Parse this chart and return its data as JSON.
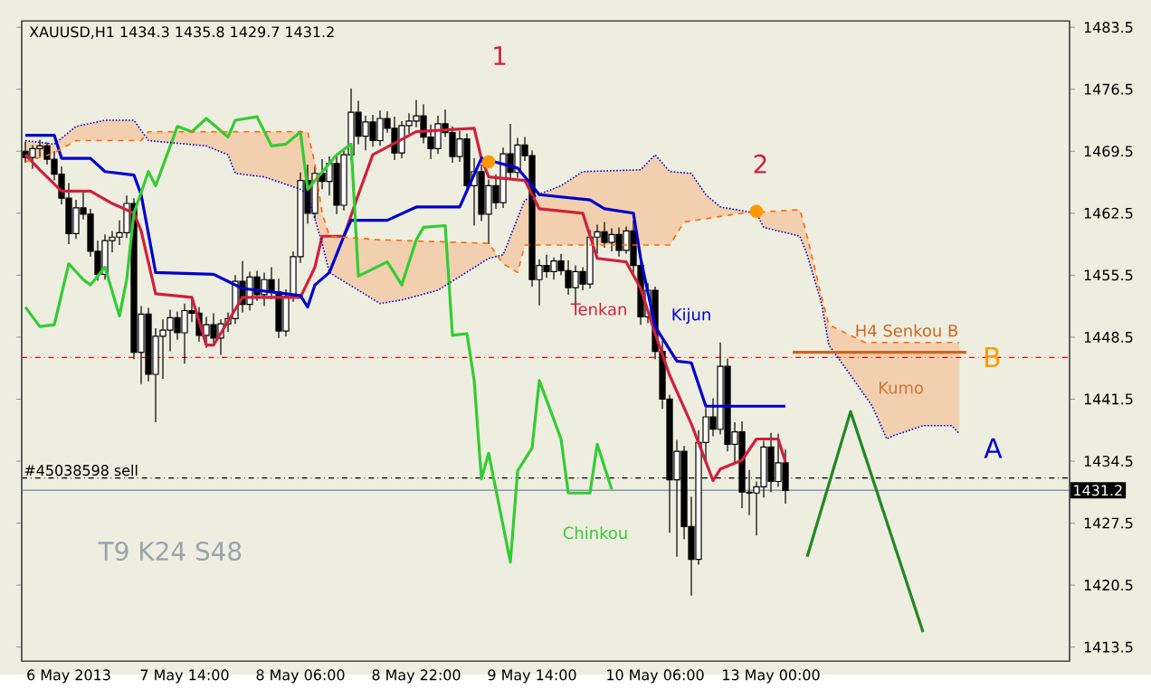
{
  "chart_data": {
    "type": "candlestick",
    "title": "XAUUSD,H1 1434.3 1435.8 1429.7 1431.2",
    "categories": [
      null,
      null,
      null,
      null,
      null,
      null,
      "6 May 2013",
      null,
      null,
      null,
      null,
      null,
      null,
      null,
      null,
      null,
      null,
      null,
      null,
      null,
      null,
      null,
      "7 May 14:00",
      null,
      null,
      null,
      null,
      null,
      null,
      null,
      null,
      null,
      null,
      null,
      null,
      null,
      null,
      null,
      "8 May 06:00",
      null,
      null,
      null,
      null,
      null,
      null,
      null,
      null,
      null,
      null,
      null,
      null,
      null,
      null,
      null,
      "8 May 22:00",
      null,
      null,
      null,
      null,
      null,
      null,
      null,
      null,
      null,
      null,
      null,
      null,
      null,
      null,
      null,
      "9 May 14:00",
      null,
      null,
      null,
      null,
      null,
      null,
      null,
      null,
      null,
      null,
      null,
      null,
      null,
      null,
      null,
      null,
      "10 May 06:00",
      null,
      null,
      null,
      null,
      null,
      null,
      null,
      null,
      null,
      null,
      null,
      null,
      null,
      null,
      null,
      "13 May 00:00",
      null,
      null,
      null,
      null,
      null,
      null,
      null,
      null,
      null,
      null,
      null,
      null,
      null,
      null,
      null,
      null,
      null,
      null,
      null,
      null,
      null,
      null,
      null,
      null,
      null,
      null,
      null,
      null,
      null,
      null,
      null,
      null,
      null,
      null,
      null,
      null,
      null,
      null,
      null,
      null,
      null
    ],
    "ohlc": [
      [
        1469.5,
        1470.6,
        1468.2,
        1468.8
      ],
      [
        1468.8,
        1470.2,
        1467.5,
        1469.8
      ],
      [
        1469.8,
        1470.8,
        1468.9,
        1470.1
      ],
      [
        1470.1,
        1470.5,
        1468.0,
        1468.6
      ],
      [
        1468.6,
        1469.5,
        1466.2,
        1466.9
      ],
      [
        1466.9,
        1467.8,
        1463.5,
        1464.2
      ],
      [
        1464.2,
        1465.9,
        1459.0,
        1460.2
      ],
      [
        1460.2,
        1464.0,
        1459.6,
        1463.1
      ],
      [
        1463.1,
        1465.1,
        1461.8,
        1462.4
      ],
      [
        1462.4,
        1463.0,
        1457.6,
        1458.2
      ],
      [
        1458.2,
        1459.4,
        1454.9,
        1455.6
      ],
      [
        1455.6,
        1460.1,
        1455.0,
        1459.4
      ],
      [
        1459.4,
        1460.5,
        1458.1,
        1459.8
      ],
      [
        1459.8,
        1461.7,
        1458.9,
        1460.3
      ],
      [
        1460.3,
        1464.5,
        1459.7,
        1463.6
      ],
      [
        1463.6,
        1464.2,
        1446.0,
        1446.8
      ],
      [
        1446.8,
        1452.0,
        1443.2,
        1451.1
      ],
      [
        1451.1,
        1451.8,
        1443.5,
        1444.3
      ],
      [
        1444.3,
        1449.5,
        1438.9,
        1448.6
      ],
      [
        1448.6,
        1450.5,
        1443.8,
        1449.3
      ],
      [
        1449.3,
        1451.6,
        1446.9,
        1450.7
      ],
      [
        1450.7,
        1451.4,
        1448.2,
        1449.0
      ],
      [
        1449.0,
        1452.3,
        1445.5,
        1451.5
      ],
      [
        1451.5,
        1452.9,
        1450.2,
        1451.2
      ],
      [
        1451.2,
        1451.9,
        1448.0,
        1448.7
      ],
      [
        1448.7,
        1450.8,
        1447.3,
        1449.9
      ],
      [
        1449.9,
        1451.2,
        1447.8,
        1448.4
      ],
      [
        1448.4,
        1450.5,
        1446.5,
        1450.0
      ],
      [
        1450.0,
        1451.3,
        1449.1,
        1450.6
      ],
      [
        1450.6,
        1455.5,
        1450.0,
        1454.8
      ],
      [
        1454.8,
        1457.1,
        1451.3,
        1452.2
      ],
      [
        1452.2,
        1455.9,
        1451.5,
        1455.3
      ],
      [
        1455.3,
        1456.0,
        1452.6,
        1453.3
      ],
      [
        1453.3,
        1455.8,
        1452.0,
        1455.0
      ],
      [
        1455.0,
        1456.4,
        1452.8,
        1453.6
      ],
      [
        1453.6,
        1455.1,
        1448.4,
        1449.2
      ],
      [
        1449.2,
        1453.9,
        1448.6,
        1453.1
      ],
      [
        1453.1,
        1458.2,
        1452.5,
        1457.6
      ],
      [
        1457.6,
        1467.1,
        1456.9,
        1466.2
      ],
      [
        1466.2,
        1468.0,
        1461.3,
        1462.5
      ],
      [
        1462.5,
        1467.8,
        1461.9,
        1467.0
      ],
      [
        1467.0,
        1468.6,
        1465.2,
        1466.1
      ],
      [
        1466.1,
        1468.9,
        1464.5,
        1468.1
      ],
      [
        1468.1,
        1469.0,
        1462.4,
        1463.4
      ],
      [
        1463.4,
        1469.8,
        1462.8,
        1469.1
      ],
      [
        1469.1,
        1476.6,
        1468.5,
        1473.9
      ],
      [
        1473.9,
        1475.2,
        1470.3,
        1471.2
      ],
      [
        1471.2,
        1473.5,
        1469.6,
        1472.8
      ],
      [
        1472.8,
        1473.6,
        1470.0,
        1470.7
      ],
      [
        1470.7,
        1474.1,
        1470.1,
        1473.2
      ],
      [
        1473.2,
        1474.0,
        1471.6,
        1472.1
      ],
      [
        1472.1,
        1473.4,
        1468.5,
        1469.3
      ],
      [
        1469.3,
        1472.9,
        1468.7,
        1472.4
      ],
      [
        1472.4,
        1473.8,
        1471.5,
        1472.9
      ],
      [
        1472.9,
        1475.3,
        1472.2,
        1473.5
      ],
      [
        1473.5,
        1474.8,
        1470.4,
        1471.1
      ],
      [
        1471.1,
        1472.5,
        1468.6,
        1469.8
      ],
      [
        1469.8,
        1473.5,
        1469.2,
        1472.6
      ],
      [
        1472.6,
        1474.2,
        1471.1,
        1471.6
      ],
      [
        1471.6,
        1472.3,
        1468.2,
        1468.9
      ],
      [
        1468.9,
        1471.8,
        1468.3,
        1470.9
      ],
      [
        1470.9,
        1471.5,
        1464.8,
        1465.6
      ],
      [
        1465.6,
        1468.7,
        1461.1,
        1467.2
      ],
      [
        1467.2,
        1468.0,
        1461.6,
        1462.4
      ],
      [
        1462.4,
        1466.3,
        1459.0,
        1465.6
      ],
      [
        1465.6,
        1466.9,
        1463.0,
        1463.7
      ],
      [
        1463.7,
        1469.9,
        1463.1,
        1469.2
      ],
      [
        1469.2,
        1472.6,
        1466.3,
        1467.1
      ],
      [
        1467.1,
        1471.0,
        1466.5,
        1470.2
      ],
      [
        1470.2,
        1471.1,
        1468.4,
        1469.0
      ],
      [
        1469.0,
        1469.6,
        1454.2,
        1455.0
      ],
      [
        1455.0,
        1457.3,
        1452.1,
        1456.6
      ],
      [
        1456.6,
        1457.8,
        1455.2,
        1455.9
      ],
      [
        1455.9,
        1457.5,
        1455.0,
        1457.1
      ],
      [
        1457.1,
        1457.9,
        1455.5,
        1456.0
      ],
      [
        1456.0,
        1457.2,
        1453.3,
        1454.1
      ],
      [
        1454.1,
        1456.6,
        1451.9,
        1455.9
      ],
      [
        1455.9,
        1456.4,
        1453.8,
        1454.5
      ],
      [
        1454.5,
        1460.6,
        1454.0,
        1459.8
      ],
      [
        1459.8,
        1461.2,
        1457.9,
        1460.4
      ],
      [
        1460.4,
        1461.5,
        1458.6,
        1459.2
      ],
      [
        1459.2,
        1460.8,
        1458.2,
        1460.1
      ],
      [
        1460.1,
        1460.9,
        1457.6,
        1458.3
      ],
      [
        1458.3,
        1461.0,
        1457.9,
        1460.5
      ],
      [
        1460.5,
        1461.7,
        1455.8,
        1456.6
      ],
      [
        1456.6,
        1457.3,
        1449.9,
        1450.8
      ],
      [
        1450.8,
        1454.6,
        1450.1,
        1453.8
      ],
      [
        1453.8,
        1454.2,
        1446.0,
        1446.9
      ],
      [
        1446.9,
        1448.1,
        1440.4,
        1441.5
      ],
      [
        1441.5,
        1442.0,
        1426.4,
        1432.4
      ],
      [
        1432.4,
        1436.9,
        1423.7,
        1435.6
      ],
      [
        1435.6,
        1436.2,
        1425.7,
        1427.1
      ],
      [
        1427.1,
        1430.5,
        1419.3,
        1423.4
      ],
      [
        1423.4,
        1438.0,
        1422.8,
        1436.6
      ],
      [
        1436.6,
        1440.5,
        1434.5,
        1439.5
      ],
      [
        1439.5,
        1441.6,
        1437.3,
        1438.1
      ],
      [
        1438.1,
        1447.9,
        1437.5,
        1445.2
      ],
      [
        1445.2,
        1446.1,
        1435.6,
        1436.4
      ],
      [
        1436.4,
        1438.9,
        1434.2,
        1437.8
      ],
      [
        1437.8,
        1439.0,
        1429.2,
        1431.0
      ],
      [
        1431.0,
        1433.5,
        1428.4,
        1430.9
      ],
      [
        1430.9,
        1432.2,
        1426.1,
        1431.6
      ],
      [
        1431.6,
        1436.8,
        1430.4,
        1436.1
      ],
      [
        1436.1,
        1437.7,
        1431.0,
        1432.2
      ],
      [
        1432.2,
        1437.6,
        1431.6,
        1434.3
      ],
      [
        1434.3,
        1435.8,
        1429.7,
        1431.2
      ],
      null,
      null,
      null,
      null,
      null,
      null,
      null,
      null,
      null,
      null,
      null,
      null,
      null,
      null,
      null,
      null,
      null,
      null,
      null,
      null,
      null,
      null,
      null,
      null,
      null,
      null,
      null,
      null,
      null,
      null,
      null,
      null,
      null,
      null,
      null,
      null,
      null,
      null,
      null
    ],
    "series": [
      {
        "type": "line",
        "name": "Tenkan",
        "color": "#d0203c",
        "values": [
          1469.1,
          null,
          1467.4,
          null,
          null,
          1465.0,
          null,
          null,
          null,
          1465.0,
          null,
          null,
          1463.6,
          null,
          null,
          1462.5,
          1460.5,
          null,
          1453.4,
          null,
          null,
          null,
          null,
          1453.0,
          null,
          1447.6,
          1447.6,
          null,
          null,
          null,
          1453.0,
          null,
          null,
          null,
          null,
          null,
          null,
          null,
          1453.0,
          null,
          1456.4,
          1459.9,
          null,
          null,
          1459.9,
          null,
          1464.6,
          null,
          1469.1,
          null,
          null,
          null,
          null,
          null,
          1471.7,
          null,
          null,
          null,
          null,
          null,
          null,
          null,
          1472.1,
          1468.7,
          1466.6,
          null,
          null,
          null,
          null,
          1466.2,
          null,
          1463.0,
          null,
          null,
          null,
          null,
          null,
          1462.5,
          null,
          1457.4,
          null,
          null,
          null,
          1457.0,
          null,
          1454.0,
          null,
          1448.9,
          null,
          1444.2,
          null,
          null,
          1438.7,
          null,
          null,
          1432.3,
          1433.6,
          null,
          null,
          1434.6,
          null,
          1437.0,
          null,
          null,
          1437.0,
          1434.4,
          null,
          null,
          null,
          null,
          null,
          null,
          null,
          null,
          null,
          null,
          null,
          null,
          null,
          null,
          null,
          null,
          null,
          null,
          null,
          null,
          null,
          null,
          null,
          null,
          null,
          null,
          null,
          null,
          null,
          null,
          null,
          null,
          null,
          null,
          null,
          null,
          null,
          null,
          null
        ]
      },
      {
        "type": "line",
        "name": "Kijun",
        "color": "#0000cc",
        "values": [
          1471.3,
          null,
          null,
          null,
          1471.3,
          1468.7,
          null,
          null,
          null,
          1468.7,
          null,
          1467.2,
          null,
          null,
          null,
          1466.8,
          1464.6,
          null,
          1455.8,
          null,
          null,
          null,
          null,
          null,
          null,
          null,
          1455.6,
          null,
          null,
          null,
          1454.0,
          null,
          null,
          null,
          null,
          null,
          null,
          null,
          1453.2,
          1451.9,
          1454.4,
          null,
          1455.8,
          null,
          1459.9,
          1461.7,
          null,
          null,
          null,
          null,
          1461.7,
          null,
          null,
          null,
          1463.2,
          null,
          null,
          null,
          null,
          null,
          1463.2,
          null,
          null,
          1468.7,
          null,
          null,
          null,
          null,
          1467.6,
          null,
          null,
          1464.6,
          null,
          null,
          null,
          null,
          null,
          null,
          1464.0,
          null,
          1463.0,
          null,
          null,
          null,
          1462.5,
          1457.4,
          null,
          1449.7,
          null,
          null,
          1445.8,
          null,
          1445.6,
          null,
          1440.7,
          null,
          null,
          null,
          null,
          null,
          null,
          null,
          null,
          null,
          null,
          1440.7,
          null,
          null,
          null,
          null,
          null,
          null,
          null,
          null,
          null,
          null,
          null,
          null,
          null,
          null,
          null,
          null,
          null,
          null,
          null,
          null,
          null,
          null,
          null,
          null,
          null,
          null,
          null,
          null,
          null,
          null,
          null,
          null,
          null,
          null,
          null,
          null,
          null,
          null,
          null
        ]
      },
      {
        "type": "line",
        "name": "Chinkou",
        "color": "#33cc33",
        "values": [
          1451.9,
          null,
          1449.7,
          null,
          1449.9,
          null,
          1456.8,
          null,
          1455.0,
          1454.4,
          null,
          1456.4,
          null,
          1450.9,
          1455.0,
          1462.5,
          null,
          1467.2,
          1465.6,
          null,
          null,
          1472.3,
          null,
          1471.7,
          null,
          1473.2,
          null,
          null,
          1471.1,
          1473.0,
          null,
          null,
          1473.4,
          null,
          1470.1,
          null,
          1470.3,
          null,
          1471.7,
          1465.2,
          null,
          null,
          null,
          1469.1,
          null,
          1470.3,
          1455.4,
          null,
          null,
          null,
          1457.0,
          null,
          1454.4,
          null,
          1459.5,
          1460.9,
          null,
          null,
          1461.1,
          1448.7,
          null,
          1448.9,
          1443.6,
          1432.5,
          1435.4,
          null,
          null,
          1423.1,
          1433.4,
          null,
          1436.0,
          1443.6,
          null,
          null,
          1437.0,
          1430.9,
          null,
          null,
          1430.9,
          1436.4,
          null,
          1431.3,
          null,
          null,
          null,
          null,
          null,
          null,
          null,
          null,
          null,
          null,
          null,
          null,
          null,
          null,
          null,
          null,
          null,
          null,
          null,
          null,
          null,
          null,
          null,
          null,
          null,
          null,
          null,
          null,
          null,
          null,
          null,
          null,
          null,
          null,
          null,
          null,
          null,
          null,
          null,
          null,
          null,
          null,
          null,
          null,
          null,
          null,
          null,
          null,
          null,
          null,
          null,
          null,
          null,
          null,
          null,
          null,
          null,
          null,
          null,
          null,
          null,
          null,
          null
        ]
      },
      {
        "type": "line",
        "color": "#0000cc",
        "line_style": "dotted",
        "values": [
          1470.7,
          null,
          null,
          null,
          1470.3,
          null,
          null,
          1472.3,
          null,
          null,
          null,
          1473.0,
          null,
          null,
          null,
          1473.0,
          null,
          1470.7,
          null,
          null,
          null,
          null,
          null,
          null,
          null,
          1470.1,
          null,
          null,
          1469.1,
          1467.0,
          null,
          null,
          null,
          1466.6,
          null,
          null,
          null,
          null,
          1465.2,
          1464.6,
          null,
          1459.1,
          1455.8,
          null,
          null,
          null,
          null,
          null,
          null,
          1452.3,
          null,
          null,
          1452.7,
          null,
          null,
          null,
          null,
          1453.8,
          null,
          null,
          null,
          null,
          null,
          null,
          1457.4,
          null,
          1457.8,
          null,
          null,
          1464.0,
          null,
          null,
          null,
          null,
          1465.6,
          null,
          null,
          1467.2,
          null,
          null,
          null,
          null,
          null,
          null,
          null,
          1467.4,
          null,
          1469.1,
          null,
          1467.2,
          null,
          null,
          1467.0,
          null,
          1464.6,
          null,
          1463.2,
          null,
          null,
          null,
          null,
          1462.5,
          1460.9,
          null,
          null,
          null,
          null,
          1459.9,
          1457.8,
          null,
          1452.3,
          1447.6,
          null,
          null,
          1444.2,
          null,
          null,
          1440.7,
          null,
          1437.0,
          1437.4,
          null,
          null,
          null,
          1438.5,
          null,
          null,
          null,
          1438.5,
          1437.6,
          null,
          null,
          null,
          null,
          null,
          null,
          null,
          null,
          null,
          null,
          null,
          null,
          null,
          null,
          null
        ]
      },
      {
        "type": "line",
        "color": "#ff6600",
        "line_style": "dashed",
        "values": [
          1468.3,
          null,
          null,
          null,
          1469.3,
          null,
          null,
          1470.7,
          null,
          null,
          null,
          null,
          null,
          null,
          null,
          null,
          1470.7,
          1471.7,
          null,
          null,
          null,
          null,
          null,
          null,
          null,
          null,
          null,
          null,
          null,
          null,
          null,
          null,
          null,
          null,
          null,
          null,
          null,
          null,
          null,
          1471.7,
          1468.1,
          1462.5,
          1459.9,
          null,
          null,
          null,
          null,
          null,
          null,
          1459.5,
          null,
          null,
          null,
          null,
          null,
          null,
          null,
          null,
          null,
          null,
          null,
          null,
          null,
          null,
          1459.1,
          null,
          1456.8,
          null,
          1455.8,
          1458.9,
          null,
          null,
          null,
          null,
          null,
          null,
          null,
          null,
          null,
          null,
          null,
          null,
          null,
          null,
          null,
          null,
          null,
          null,
          null,
          1458.9,
          null,
          1461.5,
          null,
          null,
          null,
          null,
          null,
          null,
          null,
          1462.5,
          null,
          null,
          null,
          null,
          null,
          null,
          null,
          1462.9,
          1459.9,
          null,
          1453.0,
          1449.9,
          null,
          null,
          null,
          null,
          1447.9,
          null,
          null,
          null,
          null,
          null,
          null,
          null,
          null,
          null,
          null,
          null,
          null,
          1447.9,
          null,
          null,
          null,
          null,
          null,
          null,
          null,
          null,
          null,
          null,
          null,
          null,
          null,
          null,
          null
        ]
      },
      {
        "type": "line",
        "name": "H4 Senkou B",
        "color": "#cc6622",
        "values": [
          null,
          null,
          null,
          null,
          null,
          null,
          null,
          null,
          null,
          null,
          null,
          null,
          null,
          null,
          null,
          null,
          null,
          null,
          null,
          null,
          null,
          null,
          null,
          null,
          null,
          null,
          null,
          null,
          null,
          null,
          null,
          null,
          null,
          null,
          null,
          null,
          null,
          null,
          null,
          null,
          null,
          null,
          null,
          null,
          null,
          null,
          null,
          null,
          null,
          null,
          null,
          null,
          null,
          null,
          null,
          null,
          null,
          null,
          null,
          null,
          null,
          null,
          null,
          null,
          null,
          null,
          null,
          null,
          null,
          null,
          null,
          null,
          null,
          null,
          null,
          null,
          null,
          null,
          null,
          null,
          null,
          null,
          null,
          null,
          null,
          null,
          null,
          null,
          null,
          null,
          null,
          null,
          null,
          null,
          null,
          null,
          null,
          null,
          null,
          null,
          null,
          null,
          null,
          null,
          null,
          null,
          1446.8,
          null,
          null,
          null,
          null,
          null,
          null,
          null,
          null,
          null,
          null,
          null,
          null,
          null,
          null,
          null,
          null,
          null,
          null,
          null,
          null,
          null,
          null,
          null,
          1446.8,
          null,
          null,
          null,
          null,
          null,
          null,
          null,
          null,
          null,
          null,
          null,
          null,
          null,
          null
        ]
      },
      {
        "type": "line",
        "color": "#228822",
        "values": [
          null,
          null,
          null,
          null,
          null,
          null,
          null,
          null,
          null,
          null,
          null,
          null,
          null,
          null,
          null,
          null,
          null,
          null,
          null,
          null,
          null,
          null,
          null,
          null,
          null,
          null,
          null,
          null,
          null,
          null,
          null,
          null,
          null,
          null,
          null,
          null,
          null,
          null,
          null,
          null,
          null,
          null,
          null,
          null,
          null,
          null,
          null,
          null,
          null,
          null,
          null,
          null,
          null,
          null,
          null,
          null,
          null,
          null,
          null,
          null,
          null,
          null,
          null,
          null,
          null,
          null,
          null,
          null,
          null,
          null,
          null,
          null,
          null,
          null,
          null,
          null,
          null,
          null,
          null,
          null,
          null,
          null,
          null,
          null,
          null,
          null,
          null,
          null,
          null,
          null,
          null,
          null,
          null,
          null,
          null,
          null,
          null,
          null,
          null,
          null,
          null,
          null,
          null,
          null,
          null,
          null,
          null,
          null,
          1423.7,
          null,
          null,
          null,
          null,
          null,
          1440.1,
          null,
          null,
          null,
          null,
          null,
          null,
          null,
          null,
          null,
          1415.2,
          null,
          null,
          null,
          null,
          null,
          null,
          null,
          null,
          null,
          null,
          null,
          null,
          null,
          null,
          null,
          null,
          null,
          null,
          null,
          null
        ]
      },
      {
        "type": "scatter",
        "color": "#ff9900",
        "marker": "circle",
        "values": [
          null,
          null,
          null,
          null,
          null,
          null,
          null,
          null,
          null,
          null,
          null,
          null,
          null,
          null,
          null,
          null,
          null,
          null,
          null,
          null,
          null,
          null,
          null,
          null,
          null,
          null,
          null,
          null,
          null,
          null,
          null,
          null,
          null,
          null,
          null,
          null,
          null,
          null,
          null,
          null,
          null,
          null,
          null,
          null,
          null,
          null,
          null,
          null,
          null,
          null,
          null,
          null,
          null,
          null,
          null,
          null,
          null,
          null,
          null,
          null,
          null,
          null,
          null,
          null,
          1468.3,
          null,
          null,
          null,
          null,
          null,
          null,
          null,
          null,
          null,
          null,
          null,
          null,
          null,
          null,
          null,
          null,
          null,
          null,
          null,
          null,
          null,
          null,
          null,
          null,
          null,
          null,
          null,
          null,
          null,
          null,
          null,
          null,
          null,
          null,
          null,
          null,
          1462.7,
          null,
          null,
          null,
          null,
          null,
          null,
          null,
          null,
          null,
          null,
          null,
          null,
          null,
          null,
          null,
          null,
          null,
          null,
          null,
          null,
          null,
          null,
          null,
          null,
          null,
          null,
          null,
          null,
          null,
          null,
          null,
          null,
          null,
          null,
          null,
          null,
          null,
          null,
          null,
          null,
          null,
          null,
          null
        ]
      }
    ],
    "ref_lines": [
      {
        "axis": "y",
        "value": 1446.2,
        "color": "#ff0000",
        "line_style": "dashdot"
      },
      {
        "axis": "y",
        "value": 1432.6,
        "label": "#45038598 sell",
        "color": "#000000",
        "line_style": "dashdot"
      },
      {
        "axis": "y",
        "value": 1431.2,
        "label": "1431.2",
        "color": "#8899aa",
        "line_style": "solid"
      }
    ],
    "annotations": [
      "1",
      "2",
      "A",
      "B",
      "Kumo",
      "T9 K24 S48"
    ],
    "ylim": [
      1411.9,
      1484.2
    ],
    "yticks": [
      1413.5,
      1420.5,
      1427.5,
      1434.5,
      1441.5,
      1448.5,
      1455.5,
      1462.5,
      1469.5,
      1476.5,
      1483.5
    ],
    "grid": false
  }
}
